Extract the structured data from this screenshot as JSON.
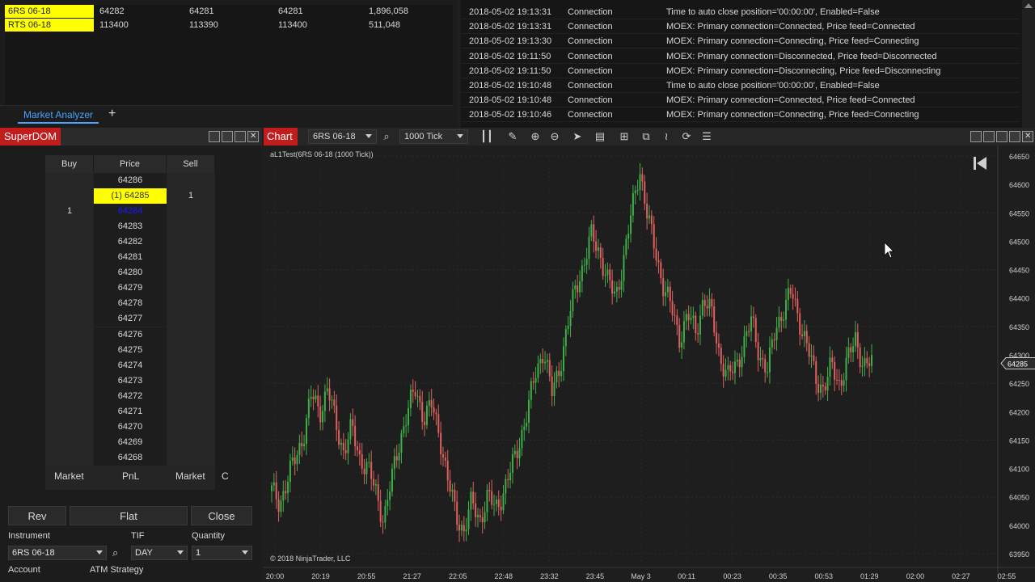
{
  "market_analyzer": {
    "rows": [
      {
        "symbol": "6RS 06-18",
        "c1": "64282",
        "c2": "64281",
        "c3": "64281",
        "c4": "1,896,058"
      },
      {
        "symbol": "RTS 06-18",
        "c1": "113400",
        "c2": "113390",
        "c3": "113400",
        "c4": "511,048"
      }
    ],
    "tab_label": "Market Analyzer",
    "add_tab": "+"
  },
  "log": {
    "rows": [
      {
        "time": "2018-05-02 19:13:31",
        "category": "Connection",
        "message": "Time to auto close position='00:00:00', Enabled=False"
      },
      {
        "time": "2018-05-02 19:13:31",
        "category": "Connection",
        "message": "MOEX: Primary connection=Connected, Price feed=Connected"
      },
      {
        "time": "2018-05-02 19:13:30",
        "category": "Connection",
        "message": "MOEX: Primary connection=Connecting, Price feed=Connecting"
      },
      {
        "time": "2018-05-02 19:11:50",
        "category": "Connection",
        "message": "MOEX: Primary connection=Disconnected, Price feed=Disconnected"
      },
      {
        "time": "2018-05-02 19:11:50",
        "category": "Connection",
        "message": "MOEX: Primary connection=Disconnecting, Price feed=Disconnecting"
      },
      {
        "time": "2018-05-02 19:10:48",
        "category": "Connection",
        "message": "Time to auto close position='00:00:00', Enabled=False"
      },
      {
        "time": "2018-05-02 19:10:48",
        "category": "Connection",
        "message": "MOEX: Primary connection=Connected, Price feed=Connected"
      },
      {
        "time": "2018-05-02 19:10:46",
        "category": "Connection",
        "message": "MOEX: Primary connection=Connecting, Price feed=Connecting"
      }
    ]
  },
  "superdom": {
    "title": "SuperDOM",
    "headers": {
      "buy": "Buy",
      "price": "Price",
      "sell": "Sell"
    },
    "ladder": [
      {
        "buy": "",
        "price": "64286",
        "sell": ""
      },
      {
        "buy": "",
        "price": "(1) 64285",
        "sell": "1"
      },
      {
        "buy": "1",
        "price": "64284",
        "sell": ""
      },
      {
        "buy": "",
        "price": "64283",
        "sell": ""
      },
      {
        "buy": "",
        "price": "64282",
        "sell": ""
      },
      {
        "buy": "",
        "price": "64281",
        "sell": ""
      },
      {
        "buy": "",
        "price": "64280",
        "sell": ""
      },
      {
        "buy": "",
        "price": "64279",
        "sell": ""
      },
      {
        "buy": "",
        "price": "64278",
        "sell": ""
      },
      {
        "buy": "",
        "price": "64277",
        "sell": ""
      },
      {
        "buy": "",
        "price": "64276",
        "sell": ""
      },
      {
        "buy": "",
        "price": "64275",
        "sell": ""
      },
      {
        "buy": "",
        "price": "64274",
        "sell": ""
      },
      {
        "buy": "",
        "price": "64273",
        "sell": ""
      },
      {
        "buy": "",
        "price": "64272",
        "sell": ""
      },
      {
        "buy": "",
        "price": "64271",
        "sell": ""
      },
      {
        "buy": "",
        "price": "64270",
        "sell": ""
      },
      {
        "buy": "",
        "price": "64269",
        "sell": ""
      },
      {
        "buy": "",
        "price": "64268",
        "sell": ""
      }
    ],
    "market_buy": "Market",
    "pnl": "PnL",
    "market_sell": "Market",
    "c_label": "C",
    "rev": "Rev",
    "flat": "Flat",
    "close": "Close",
    "instrument_label": "Instrument",
    "tif_label": "TIF",
    "quantity_label": "Quantity",
    "instrument_value": "6RS 06-18",
    "tif_value": "DAY",
    "quantity_value": "1",
    "account_label": "Account",
    "atm_label": "ATM Strategy"
  },
  "chart": {
    "title": "Chart",
    "instrument": "6RS 06-18",
    "interval": "1000 Tick",
    "series_label": "aL1Test(6RS 06-18 (1000 Tick))",
    "copyright": "© 2018 NinjaTrader, LLC",
    "last_price_badge": "64285",
    "colors": {
      "up": "#3fae48",
      "down": "#e06060",
      "bg": "#1e1e1e",
      "grid": "#2c2c2c"
    }
  },
  "chart_data": {
    "type": "candlestick",
    "ylim": [
      63950,
      64650
    ],
    "y_ticks": [
      64650,
      64600,
      64550,
      64500,
      64450,
      64400,
      64350,
      64300,
      64250,
      64200,
      64150,
      64100,
      64050,
      64000,
      63950
    ],
    "x_ticks": [
      "20:00",
      "20:19",
      "20:55",
      "21:27",
      "22:05",
      "22:48",
      "23:32",
      "23:45",
      "May 3",
      "00:11",
      "00:23",
      "00:35",
      "00:53",
      "01:29",
      "02:00",
      "02:27",
      "02:55"
    ],
    "close_path": [
      64060,
      64040,
      64080,
      64120,
      64160,
      64230,
      64200,
      64240,
      64180,
      64130,
      64170,
      64120,
      64100,
      64060,
      64010,
      64080,
      64150,
      64200,
      64240,
      64190,
      64210,
      64160,
      64080,
      64020,
      63990,
      64040,
      64010,
      64050,
      64030,
      64060,
      64100,
      64150,
      64200,
      64270,
      64310,
      64230,
      64280,
      64350,
      64420,
      64460,
      64510,
      64480,
      64430,
      64400,
      64470,
      64550,
      64630,
      64540,
      64480,
      64420,
      64380,
      64330,
      64370,
      64340,
      64400,
      64370,
      64300,
      64260,
      64280,
      64320,
      64360,
      64300,
      64270,
      64350,
      64380,
      64410,
      64360,
      64310,
      64260,
      64240,
      64280,
      64250,
      64290,
      64330,
      64280,
      64285
    ]
  }
}
